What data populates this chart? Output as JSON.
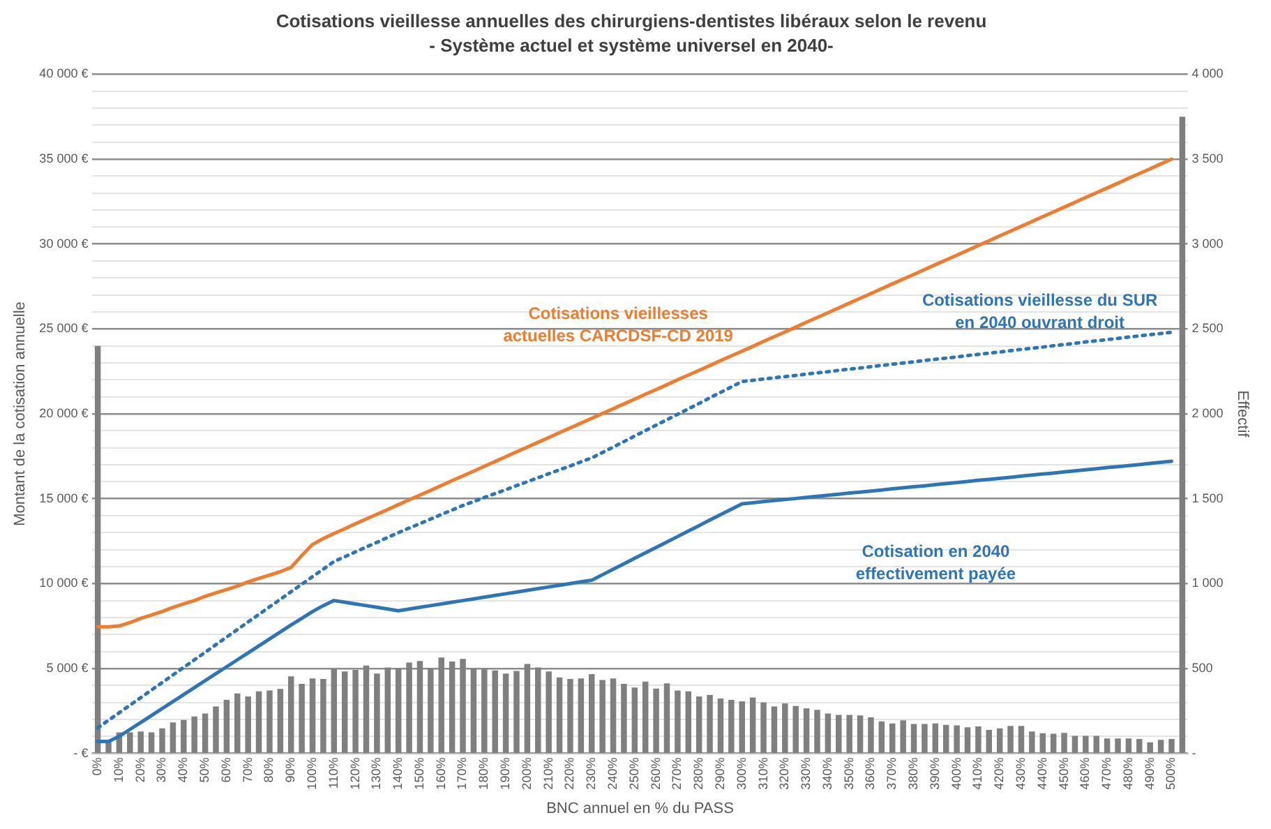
{
  "chart_data": {
    "type": "line",
    "title": "Cotisations vieillesse annuelles des chirurgiens-dentistes libéraux selon le revenu",
    "subtitle": "- Système actuel et système universel en 2040-",
    "xlabel": "BNC annuel en % du PASS",
    "ylabel": "Montant de la cotisation annuelle",
    "y2label": "Effectif",
    "categories": [
      "0%",
      null,
      "10%",
      null,
      "20%",
      null,
      "30%",
      null,
      "40%",
      null,
      "50%",
      null,
      "60%",
      null,
      "70%",
      null,
      "80%",
      null,
      "90%",
      null,
      "100%",
      null,
      "110%",
      null,
      "120%",
      null,
      "130%",
      null,
      "140%",
      null,
      "150%",
      null,
      "160%",
      null,
      "170%",
      null,
      "180%",
      null,
      "190%",
      null,
      "200%",
      null,
      "210%",
      null,
      "220%",
      null,
      "230%",
      null,
      "240%",
      null,
      "250%",
      null,
      "260%",
      null,
      "270%",
      null,
      "280%",
      null,
      "290%",
      null,
      "300%",
      null,
      "310%",
      null,
      "320%",
      null,
      "330%",
      null,
      "340%",
      null,
      "350%",
      null,
      "360%",
      null,
      "370%",
      null,
      "380%",
      null,
      "390%",
      null,
      "400%",
      null,
      "410%",
      null,
      "420%",
      null,
      "430%",
      null,
      "440%",
      null,
      "450%",
      null,
      "460%",
      null,
      "470%",
      null,
      "480%",
      null,
      "490%",
      null,
      "500%",
      null
    ],
    "series": [
      {
        "type": "bar",
        "axis": "y2",
        "color": "#7f7f7f",
        "values": [
          2400,
          70,
          124,
          124,
          129,
          124,
          147,
          182,
          197,
          217,
          235,
          276,
          315,
          353,
          335,
          365,
          370,
          379,
          453,
          409,
          441,
          438,
          497,
          482,
          491,
          517,
          470,
          506,
          500,
          535,
          544,
          500,
          564,
          541,
          556,
          497,
          497,
          488,
          470,
          485,
          526,
          506,
          482,
          447,
          438,
          441,
          467,
          432,
          441,
          409,
          388,
          423,
          382,
          412,
          370,
          365,
          335,
          344,
          323,
          315,
          306,
          329,
          300,
          276,
          294,
          279,
          265,
          256,
          235,
          226,
          226,
          223,
          212,
          188,
          176,
          194,
          173,
          173,
          176,
          168,
          165,
          153,
          159,
          138,
          147,
          162,
          162,
          129,
          118,
          115,
          121,
          103,
          103,
          103,
          88,
          88,
          88,
          85,
          65,
          79,
          85,
          3750
        ]
      },
      {
        "name": "Cotisations vieillesses actuelles CARCDSF-CD 2019",
        "color": "#ed7d31",
        "line_style": "solid",
        "values": [
          7450,
          7450,
          7500,
          7700,
          7950,
          8150,
          8350,
          8600,
          8800,
          9000,
          9250,
          9450,
          9650,
          9850,
          10100,
          10300,
          10500,
          10700,
          10950,
          11650,
          12300,
          12650,
          12950,
          13230,
          13520,
          13800,
          14080,
          14360,
          14650,
          14930,
          15210,
          15490,
          15780,
          16060,
          16340,
          16620,
          16910,
          17190,
          17470,
          17760,
          18040,
          18320,
          18600,
          18890,
          19170,
          19450,
          19730,
          20020,
          20300,
          20580,
          20860,
          21150,
          21430,
          21710,
          22000,
          22280,
          22560,
          22840,
          23130,
          23410,
          23690,
          23970,
          24260,
          24540,
          24820,
          25100,
          25390,
          25670,
          25950,
          26240,
          26520,
          26800,
          27080,
          27370,
          27650,
          27930,
          28210,
          28500,
          28780,
          29060,
          29340,
          29630,
          29910,
          30190,
          30480,
          30760,
          31040,
          31320,
          31610,
          31890,
          32170,
          32450,
          32740,
          33020,
          33300,
          33580,
          33870,
          34150,
          34430,
          34720,
          35000,
          null
        ]
      },
      {
        "name": "Cotisations vieillesse du SUR en 2040 ouvrant droit",
        "color": "#2e75b6",
        "line_style": "dotted",
        "values": [
          1500,
          1950,
          2390,
          2840,
          3280,
          3730,
          4170,
          4620,
          5060,
          5510,
          5950,
          6400,
          6850,
          7290,
          7740,
          8180,
          8630,
          9070,
          9520,
          9960,
          10410,
          10850,
          11300,
          11580,
          11870,
          12150,
          12430,
          12720,
          13000,
          13270,
          13530,
          13800,
          14070,
          14330,
          14600,
          14830,
          15070,
          15300,
          15530,
          15770,
          16000,
          16230,
          16470,
          16700,
          16930,
          17170,
          17400,
          17720,
          18040,
          18360,
          18690,
          19010,
          19330,
          19650,
          19970,
          20290,
          20610,
          20940,
          21260,
          21580,
          21900,
          21970,
          22050,
          22120,
          22190,
          22260,
          22340,
          22410,
          22480,
          22560,
          22630,
          22700,
          22770,
          22850,
          22920,
          22990,
          23060,
          23140,
          23210,
          23280,
          23350,
          23430,
          23500,
          23570,
          23640,
          23720,
          23790,
          23860,
          23930,
          24010,
          24080,
          24150,
          24230,
          24300,
          24370,
          24440,
          24520,
          24590,
          24660,
          24730,
          24800,
          null
        ]
      },
      {
        "name": "Cotisation en 2040 effectivement payée",
        "color": "#2e75b6",
        "line_style": "solid",
        "values": [
          700,
          700,
          1000,
          1410,
          1820,
          2230,
          2640,
          3050,
          3460,
          3870,
          4280,
          4690,
          5100,
          5510,
          5920,
          6330,
          6740,
          7150,
          7560,
          7950,
          8350,
          8700,
          9000,
          8900,
          8800,
          8700,
          8600,
          8500,
          8400,
          8500,
          8600,
          8700,
          8800,
          8900,
          9000,
          9100,
          9200,
          9300,
          9400,
          9500,
          9600,
          9700,
          9800,
          9900,
          10000,
          10100,
          10200,
          10520,
          10840,
          11160,
          11490,
          11810,
          12130,
          12450,
          12770,
          13090,
          13410,
          13740,
          14060,
          14380,
          14700,
          14760,
          14830,
          14890,
          14950,
          15010,
          15080,
          15140,
          15200,
          15260,
          15330,
          15390,
          15450,
          15510,
          15580,
          15640,
          15700,
          15760,
          15830,
          15890,
          15950,
          16010,
          16080,
          16140,
          16200,
          16260,
          16330,
          16390,
          16450,
          16510,
          16580,
          16640,
          16700,
          16760,
          16830,
          16890,
          16950,
          17010,
          17080,
          17140,
          17200,
          null
        ]
      }
    ],
    "ylim": [
      0,
      40000
    ],
    "yticks": [
      {
        "value": 0,
        "label": "- €"
      },
      {
        "value": 1000,
        "label": null
      },
      {
        "value": 2000,
        "label": null
      },
      {
        "value": 3000,
        "label": null
      },
      {
        "value": 4000,
        "label": null
      },
      {
        "value": 5000,
        "label": "5 000 €"
      },
      {
        "value": 6000,
        "label": null
      },
      {
        "value": 7000,
        "label": null
      },
      {
        "value": 8000,
        "label": null
      },
      {
        "value": 9000,
        "label": null
      },
      {
        "value": 10000,
        "label": "10 000 €"
      },
      {
        "value": 11000,
        "label": null
      },
      {
        "value": 12000,
        "label": null
      },
      {
        "value": 13000,
        "label": null
      },
      {
        "value": 14000,
        "label": null
      },
      {
        "value": 15000,
        "label": "15 000 €"
      },
      {
        "value": 16000,
        "label": null
      },
      {
        "value": 17000,
        "label": null
      },
      {
        "value": 18000,
        "label": null
      },
      {
        "value": 19000,
        "label": null
      },
      {
        "value": 20000,
        "label": "20 000 €"
      },
      {
        "value": 21000,
        "label": null
      },
      {
        "value": 22000,
        "label": null
      },
      {
        "value": 23000,
        "label": null
      },
      {
        "value": 24000,
        "label": null
      },
      {
        "value": 25000,
        "label": "25 000 €"
      },
      {
        "value": 26000,
        "label": null
      },
      {
        "value": 27000,
        "label": null
      },
      {
        "value": 28000,
        "label": null
      },
      {
        "value": 29000,
        "label": null
      },
      {
        "value": 30000,
        "label": "30 000 €"
      },
      {
        "value": 31000,
        "label": null
      },
      {
        "value": 32000,
        "label": null
      },
      {
        "value": 33000,
        "label": null
      },
      {
        "value": 34000,
        "label": null
      },
      {
        "value": 35000,
        "label": "35 000 €"
      },
      {
        "value": 36000,
        "label": null
      },
      {
        "value": 37000,
        "label": null
      },
      {
        "value": 38000,
        "label": null
      },
      {
        "value": 39000,
        "label": null
      },
      {
        "value": 40000,
        "label": "40 000 €"
      }
    ],
    "y2lim": [
      0,
      4000
    ],
    "y2ticks": [
      {
        "value": 0,
        "label": "-"
      },
      500,
      {
        "value": 1000,
        "label": "1 000"
      },
      {
        "value": 1500,
        "label": "1 500"
      },
      {
        "value": 2000,
        "label": "2 000"
      },
      {
        "value": 2500,
        "label": "2 500"
      },
      {
        "value": 3000,
        "label": "3 000"
      },
      {
        "value": 3500,
        "label": "3 500"
      },
      {
        "value": 4000,
        "label": "4 000"
      }
    ],
    "grid": "y",
    "legend": false,
    "marker": "none"
  }
}
